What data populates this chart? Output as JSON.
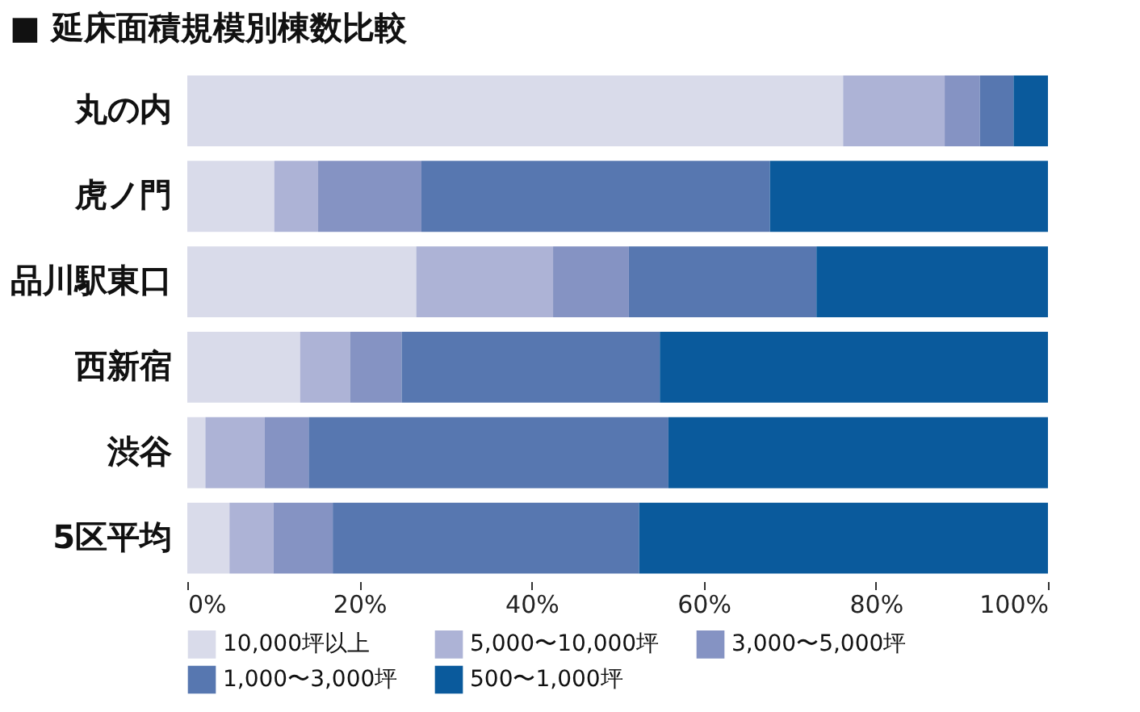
{
  "chart_data": {
    "type": "bar",
    "orientation": "horizontal",
    "stacked": true,
    "title": "■ 延床面積規模別棟数比較",
    "categories": [
      "丸の内",
      "虎ノ門",
      "品川駅東口",
      "西新宿",
      "渋谷",
      "5区平均"
    ],
    "series": [
      {
        "name": "10,000坪以上",
        "color": "#d9dbea",
        "values": [
          76.2,
          10.1,
          26.6,
          13.1,
          2.1,
          4.9
        ]
      },
      {
        "name": "5,000〜10,000坪",
        "color": "#adb3d6",
        "values": [
          11.8,
          5.1,
          15.9,
          5.8,
          6.9,
          5.1
        ]
      },
      {
        "name": "3,000〜5,000坪",
        "color": "#8593c3",
        "values": [
          4.1,
          12.0,
          8.8,
          6.0,
          5.1,
          6.9
        ]
      },
      {
        "name": "1,000〜3,000坪",
        "color": "#5777b0",
        "values": [
          3.9,
          40.5,
          21.8,
          30.0,
          41.8,
          35.6
        ]
      },
      {
        "name": "500〜1,000坪",
        "color": "#0a5a9c",
        "values": [
          4.0,
          32.3,
          26.9,
          45.1,
          44.1,
          47.5
        ]
      }
    ],
    "xlim": [
      0,
      100
    ],
    "xticks": [
      {
        "value": 0,
        "label": "0%"
      },
      {
        "value": 20,
        "label": "20%"
      },
      {
        "value": 40,
        "label": "40%"
      },
      {
        "value": 60,
        "label": "60%"
      },
      {
        "value": 80,
        "label": "80%"
      },
      {
        "value": 100,
        "label": "100%"
      }
    ],
    "grid": false,
    "legend": "bottom"
  }
}
